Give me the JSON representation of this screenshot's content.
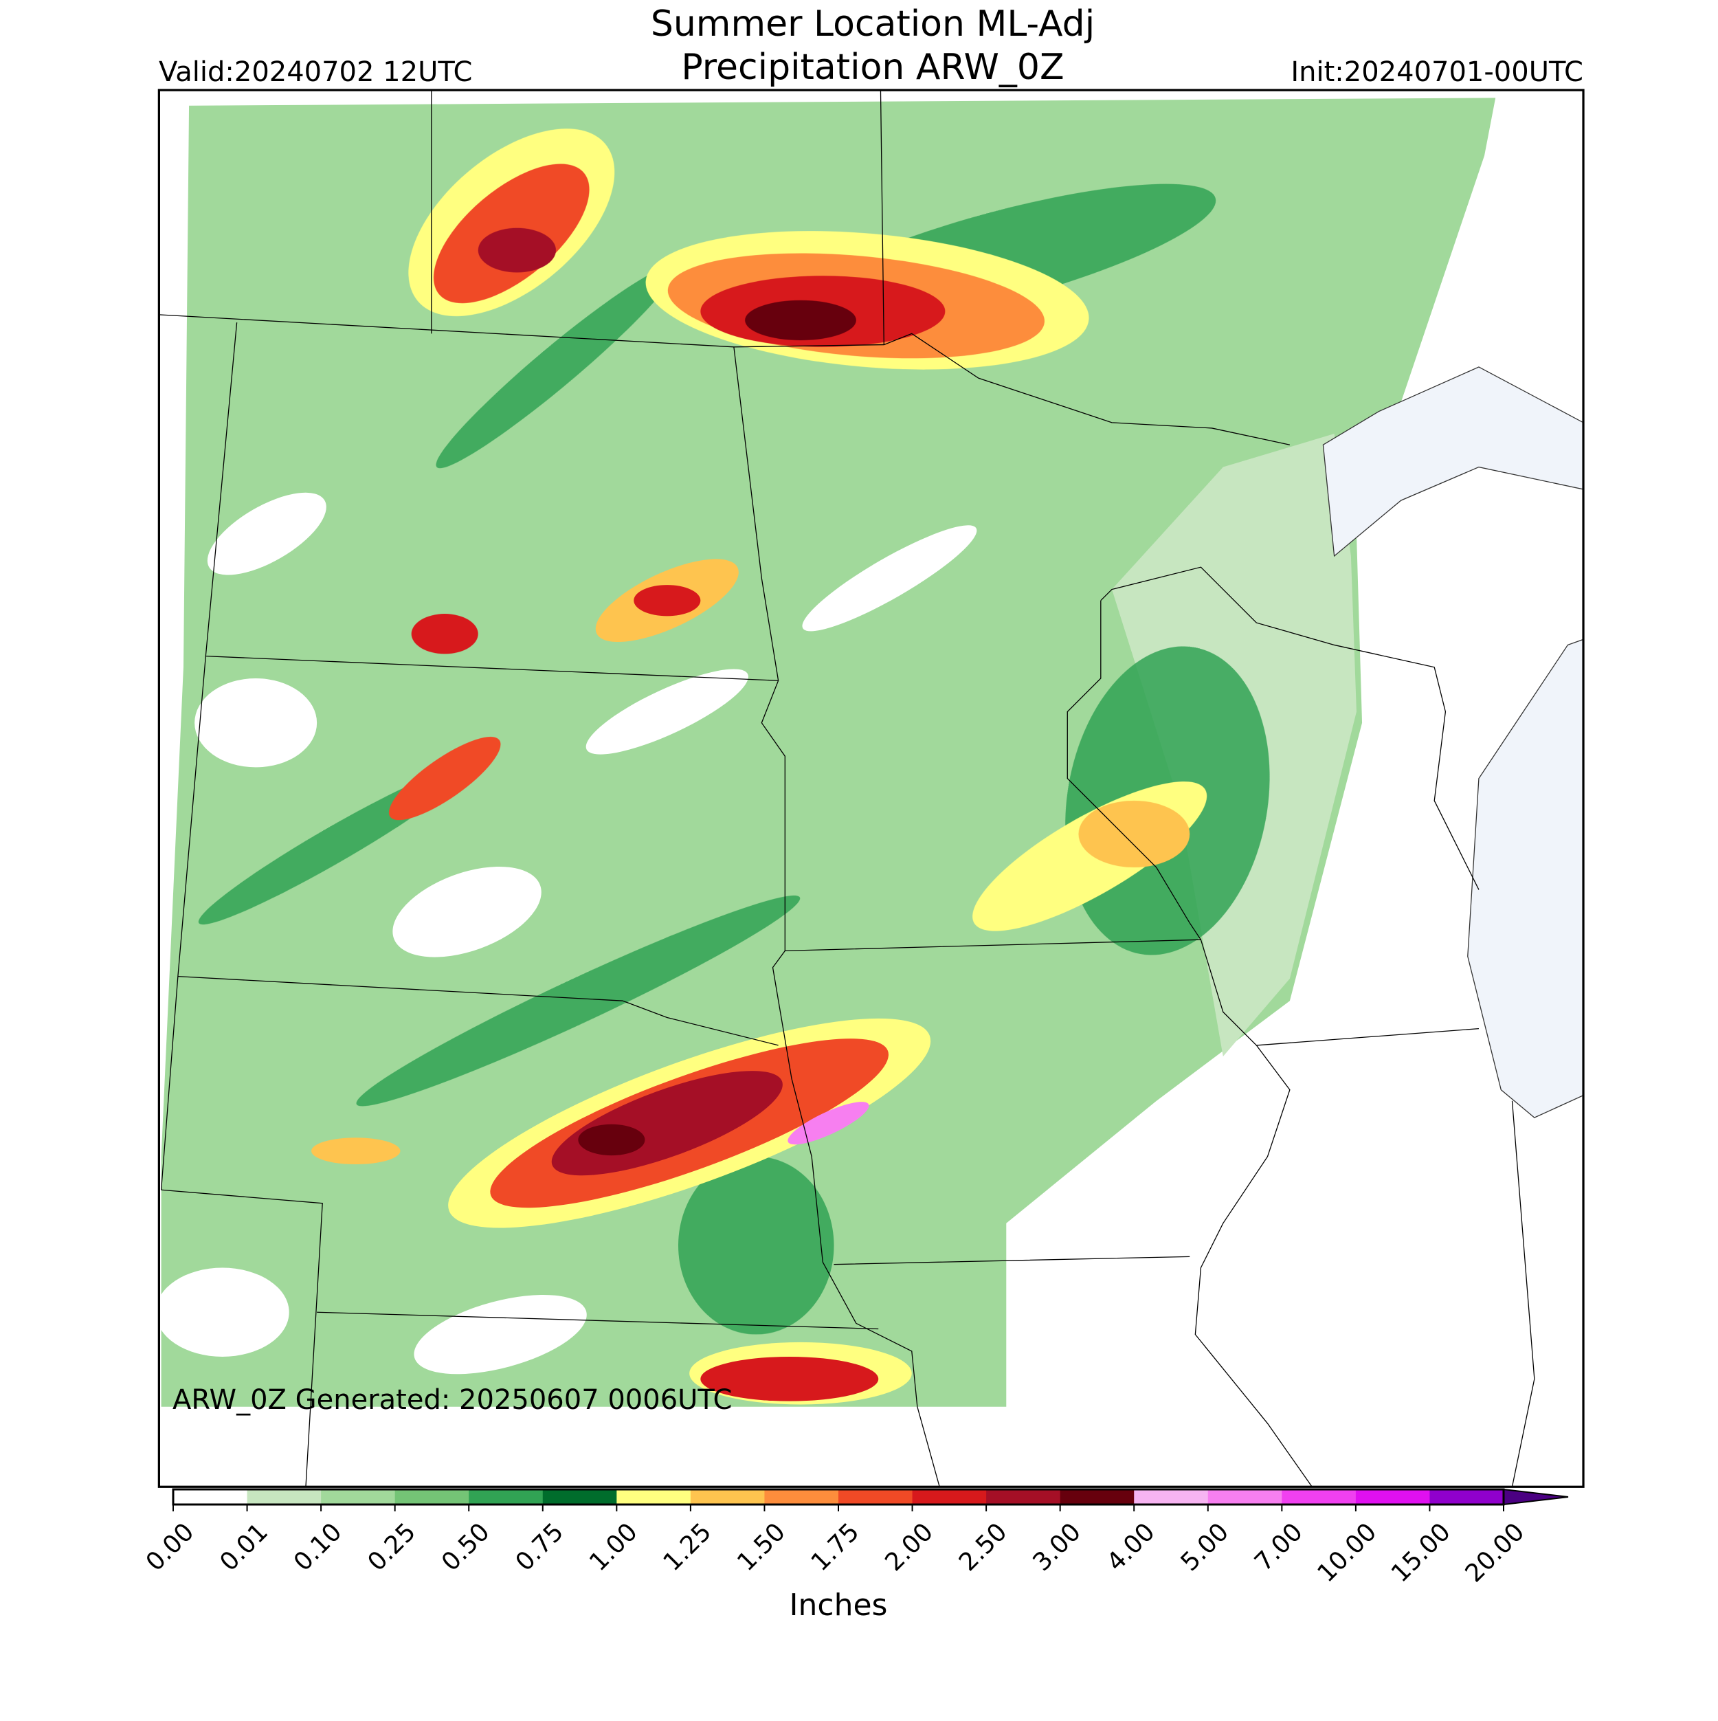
{
  "header": {
    "title_lines": [
      "Summer Location ML-Adj",
      "Precipitation ARW_0Z"
    ],
    "valid": "Valid:20240702 12UTC",
    "init": "Init:20240701-00UTC"
  },
  "map": {
    "footer_text": "ARW_0Z Generated: 20250607 0006UTC"
  },
  "colorbar": {
    "label": "Inches",
    "ticks": [
      {
        "value": 0,
        "label": "0.00"
      },
      {
        "value": 0.01,
        "label": "0.01"
      },
      {
        "value": 0.1,
        "label": "0.10"
      },
      {
        "value": 0.25,
        "label": "0.25"
      },
      {
        "value": 0.5,
        "label": "0.50"
      },
      {
        "value": 0.75,
        "label": "0.75"
      },
      {
        "value": 1,
        "label": "1.00"
      },
      {
        "value": 1.25,
        "label": "1.25"
      },
      {
        "value": 1.5,
        "label": "1.50"
      },
      {
        "value": 1.75,
        "label": "1.75"
      },
      {
        "value": 2,
        "label": "2.00"
      },
      {
        "value": 2.5,
        "label": "2.50"
      },
      {
        "value": 3,
        "label": "3.00"
      },
      {
        "value": 4,
        "label": "4.00"
      },
      {
        "value": 5,
        "label": "5.00"
      },
      {
        "value": 7,
        "label": "7.00"
      },
      {
        "value": 10,
        "label": "10.00"
      },
      {
        "value": 15,
        "label": "15.00"
      },
      {
        "value": 20,
        "label": "20.00"
      }
    ],
    "colors": [
      "#ffffff",
      "#c7e6c0",
      "#a1d99b",
      "#74c476",
      "#31a354",
      "#006d2c",
      "#ffff80",
      "#fec44f",
      "#fd8d3c",
      "#f04a26",
      "#d7191c",
      "#a50f26",
      "#67000d",
      "#f7b4f2",
      "#f77ff0",
      "#f040f0",
      "#e010f0",
      "#9000cc"
    ],
    "extend_color": "#4b0082"
  }
}
